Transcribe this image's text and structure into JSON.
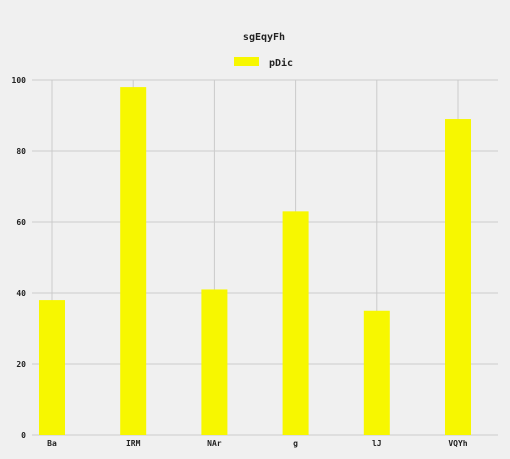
{
  "chart_data": {
    "type": "bar",
    "title": "sgEqyFh",
    "xlabel": "",
    "ylabel": "",
    "categories": [
      "Ba",
      "IRM",
      "NAr",
      "g",
      "lJ",
      "VQYh"
    ],
    "series": [
      {
        "name": "pDic",
        "values": [
          38,
          98,
          41,
          63,
          35,
          89
        ],
        "color": "#f7f700"
      }
    ],
    "ylim": [
      0,
      100
    ],
    "yticks": [
      0,
      20,
      40,
      60,
      80,
      100
    ],
    "grid": true,
    "legend_position": "top-center"
  }
}
